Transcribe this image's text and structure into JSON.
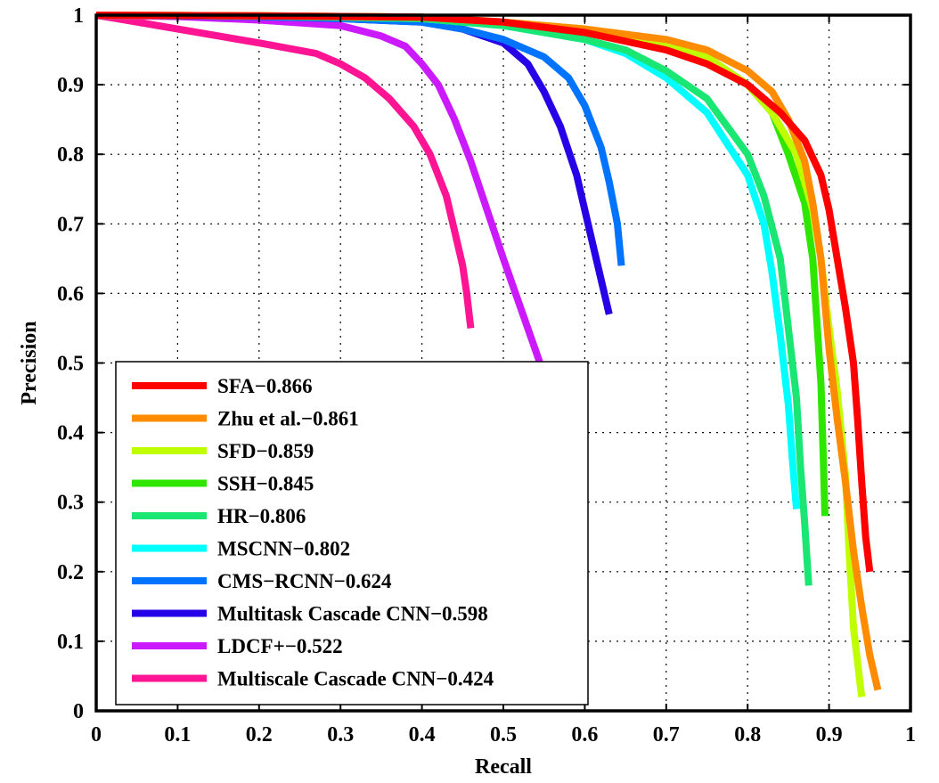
{
  "chart_data": {
    "type": "line",
    "title": "",
    "xlabel": "Recall",
    "ylabel": "Precision",
    "xlim": [
      0,
      1
    ],
    "ylim": [
      0,
      1
    ],
    "xticks": [
      "0",
      "0.1",
      "0.2",
      "0.3",
      "0.4",
      "0.5",
      "0.6",
      "0.7",
      "0.8",
      "0.9",
      "1"
    ],
    "yticks": [
      "0",
      "0.1",
      "0.2",
      "0.3",
      "0.4",
      "0.5",
      "0.6",
      "0.7",
      "0.8",
      "0.9",
      "1"
    ],
    "grid": true,
    "legend_position": "bottom-left",
    "series": [
      {
        "name": "SFA−0.866",
        "color": "#ff0000",
        "points": [
          [
            0,
            1
          ],
          [
            0.2,
            0.999
          ],
          [
            0.4,
            0.997
          ],
          [
            0.5,
            0.99
          ],
          [
            0.6,
            0.975
          ],
          [
            0.7,
            0.95
          ],
          [
            0.75,
            0.93
          ],
          [
            0.8,
            0.9
          ],
          [
            0.84,
            0.86
          ],
          [
            0.87,
            0.82
          ],
          [
            0.89,
            0.77
          ],
          [
            0.9,
            0.72
          ],
          [
            0.91,
            0.65
          ],
          [
            0.92,
            0.58
          ],
          [
            0.93,
            0.5
          ],
          [
            0.935,
            0.42
          ],
          [
            0.94,
            0.33
          ],
          [
            0.945,
            0.25
          ],
          [
            0.95,
            0.2
          ]
        ]
      },
      {
        "name": "Zhu et al.−0.861",
        "color": "#ff8c00",
        "points": [
          [
            0,
            1
          ],
          [
            0.2,
            0.999
          ],
          [
            0.4,
            0.997
          ],
          [
            0.5,
            0.99
          ],
          [
            0.6,
            0.98
          ],
          [
            0.7,
            0.965
          ],
          [
            0.75,
            0.95
          ],
          [
            0.8,
            0.92
          ],
          [
            0.83,
            0.89
          ],
          [
            0.85,
            0.85
          ],
          [
            0.87,
            0.79
          ],
          [
            0.88,
            0.73
          ],
          [
            0.89,
            0.65
          ],
          [
            0.9,
            0.52
          ],
          [
            0.91,
            0.42
          ],
          [
            0.92,
            0.33
          ],
          [
            0.93,
            0.23
          ],
          [
            0.94,
            0.15
          ],
          [
            0.95,
            0.08
          ],
          [
            0.96,
            0.03
          ]
        ]
      },
      {
        "name": "SFD−0.859",
        "color": "#c0ff00",
        "points": [
          [
            0,
            1
          ],
          [
            0.2,
            0.999
          ],
          [
            0.4,
            0.997
          ],
          [
            0.5,
            0.99
          ],
          [
            0.6,
            0.98
          ],
          [
            0.7,
            0.96
          ],
          [
            0.75,
            0.94
          ],
          [
            0.8,
            0.9
          ],
          [
            0.83,
            0.86
          ],
          [
            0.86,
            0.8
          ],
          [
            0.88,
            0.72
          ],
          [
            0.89,
            0.65
          ],
          [
            0.9,
            0.55
          ],
          [
            0.91,
            0.46
          ],
          [
            0.92,
            0.34
          ],
          [
            0.925,
            0.22
          ],
          [
            0.93,
            0.12
          ],
          [
            0.94,
            0.02
          ]
        ]
      },
      {
        "name": "SSH−0.845",
        "color": "#2ee600",
        "points": [
          [
            0,
            1
          ],
          [
            0.2,
            0.999
          ],
          [
            0.4,
            0.997
          ],
          [
            0.5,
            0.99
          ],
          [
            0.6,
            0.98
          ],
          [
            0.7,
            0.96
          ],
          [
            0.75,
            0.94
          ],
          [
            0.8,
            0.9
          ],
          [
            0.83,
            0.86
          ],
          [
            0.85,
            0.8
          ],
          [
            0.87,
            0.73
          ],
          [
            0.88,
            0.65
          ],
          [
            0.885,
            0.56
          ],
          [
            0.89,
            0.47
          ],
          [
            0.893,
            0.36
          ],
          [
            0.895,
            0.28
          ]
        ]
      },
      {
        "name": "HR−0.806",
        "color": "#19e673",
        "points": [
          [
            0,
            1
          ],
          [
            0.2,
            0.999
          ],
          [
            0.4,
            0.995
          ],
          [
            0.5,
            0.985
          ],
          [
            0.6,
            0.965
          ],
          [
            0.65,
            0.95
          ],
          [
            0.7,
            0.92
          ],
          [
            0.75,
            0.88
          ],
          [
            0.8,
            0.8
          ],
          [
            0.82,
            0.74
          ],
          [
            0.84,
            0.65
          ],
          [
            0.85,
            0.55
          ],
          [
            0.86,
            0.45
          ],
          [
            0.865,
            0.35
          ],
          [
            0.87,
            0.27
          ],
          [
            0.875,
            0.18
          ]
        ]
      },
      {
        "name": "MSCNN−0.802",
        "color": "#00ffff",
        "points": [
          [
            0,
            1
          ],
          [
            0.2,
            0.999
          ],
          [
            0.4,
            0.995
          ],
          [
            0.5,
            0.985
          ],
          [
            0.6,
            0.965
          ],
          [
            0.65,
            0.945
          ],
          [
            0.7,
            0.91
          ],
          [
            0.75,
            0.86
          ],
          [
            0.8,
            0.77
          ],
          [
            0.82,
            0.7
          ],
          [
            0.83,
            0.63
          ],
          [
            0.84,
            0.54
          ],
          [
            0.85,
            0.44
          ],
          [
            0.855,
            0.36
          ],
          [
            0.86,
            0.29
          ]
        ]
      },
      {
        "name": "CMS−RCNN−0.624",
        "color": "#0073ff",
        "points": [
          [
            0,
            1
          ],
          [
            0.2,
            0.998
          ],
          [
            0.3,
            0.995
          ],
          [
            0.4,
            0.99
          ],
          [
            0.45,
            0.98
          ],
          [
            0.5,
            0.965
          ],
          [
            0.55,
            0.94
          ],
          [
            0.58,
            0.91
          ],
          [
            0.6,
            0.87
          ],
          [
            0.62,
            0.81
          ],
          [
            0.63,
            0.76
          ],
          [
            0.64,
            0.7
          ],
          [
            0.645,
            0.64
          ]
        ]
      },
      {
        "name": "Multitask Cascade CNN−0.598",
        "color": "#2600e6",
        "points": [
          [
            0,
            1
          ],
          [
            0.2,
            0.998
          ],
          [
            0.3,
            0.995
          ],
          [
            0.4,
            0.99
          ],
          [
            0.45,
            0.98
          ],
          [
            0.5,
            0.96
          ],
          [
            0.53,
            0.93
          ],
          [
            0.55,
            0.89
          ],
          [
            0.57,
            0.84
          ],
          [
            0.59,
            0.77
          ],
          [
            0.6,
            0.72
          ],
          [
            0.61,
            0.67
          ],
          [
            0.62,
            0.62
          ],
          [
            0.63,
            0.57
          ]
        ]
      },
      {
        "name": "LDCF+−0.522",
        "color": "#cc1aff",
        "points": [
          [
            0,
            1
          ],
          [
            0.1,
            0.998
          ],
          [
            0.2,
            0.993
          ],
          [
            0.3,
            0.985
          ],
          [
            0.35,
            0.97
          ],
          [
            0.38,
            0.955
          ],
          [
            0.4,
            0.93
          ],
          [
            0.42,
            0.9
          ],
          [
            0.44,
            0.85
          ],
          [
            0.46,
            0.79
          ],
          [
            0.48,
            0.72
          ],
          [
            0.5,
            0.65
          ],
          [
            0.515,
            0.6
          ],
          [
            0.53,
            0.55
          ],
          [
            0.545,
            0.5
          ]
        ]
      },
      {
        "name": "Multiscale Cascade CNN−0.424",
        "color": "#ff1493",
        "points": [
          [
            0,
            1
          ],
          [
            0.1,
            0.98
          ],
          [
            0.2,
            0.96
          ],
          [
            0.27,
            0.945
          ],
          [
            0.3,
            0.93
          ],
          [
            0.33,
            0.91
          ],
          [
            0.36,
            0.88
          ],
          [
            0.39,
            0.84
          ],
          [
            0.41,
            0.8
          ],
          [
            0.43,
            0.74
          ],
          [
            0.44,
            0.69
          ],
          [
            0.45,
            0.64
          ],
          [
            0.455,
            0.6
          ],
          [
            0.46,
            0.55
          ]
        ]
      }
    ]
  }
}
